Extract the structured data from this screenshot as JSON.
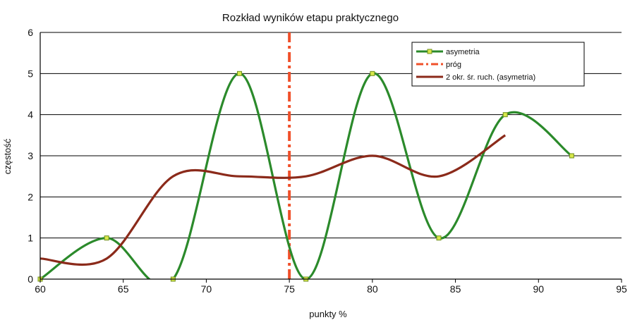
{
  "chart_data": {
    "type": "line",
    "title": "Rozkład wyników etapu praktycznego",
    "xlabel": "punkty %",
    "ylabel": "częstość",
    "xlim": [
      60,
      95
    ],
    "ylim": [
      0,
      6
    ],
    "x_ticks": [
      "60",
      "65",
      "70",
      "75",
      "80",
      "85",
      "90",
      "95"
    ],
    "y_ticks": [
      "0",
      "1",
      "2",
      "3",
      "4",
      "5",
      "6"
    ],
    "grid": "horizontal",
    "legend_position": "top-right",
    "series": [
      {
        "name": "asymetria",
        "color": "#2b8a2b",
        "style": "smooth-line-with-square-markers",
        "x": [
          60,
          64,
          68,
          72,
          76,
          80,
          84,
          88,
          92
        ],
        "y": [
          0,
          1,
          0,
          5,
          0,
          5,
          1,
          4,
          3
        ]
      },
      {
        "name": "próg",
        "color": "#f0502a",
        "style": "dash-dot-vertical",
        "x": [
          75,
          75
        ],
        "y": [
          0,
          6
        ]
      },
      {
        "name": "2 okr. śr. ruch. (asymetria)",
        "color": "#8b2a1a",
        "style": "smooth-line",
        "x": [
          60,
          64,
          68,
          72,
          76,
          80,
          84,
          88
        ],
        "y": [
          0.5,
          0.5,
          2.5,
          2.5,
          2.5,
          3.0,
          2.5,
          3.5
        ]
      }
    ]
  }
}
